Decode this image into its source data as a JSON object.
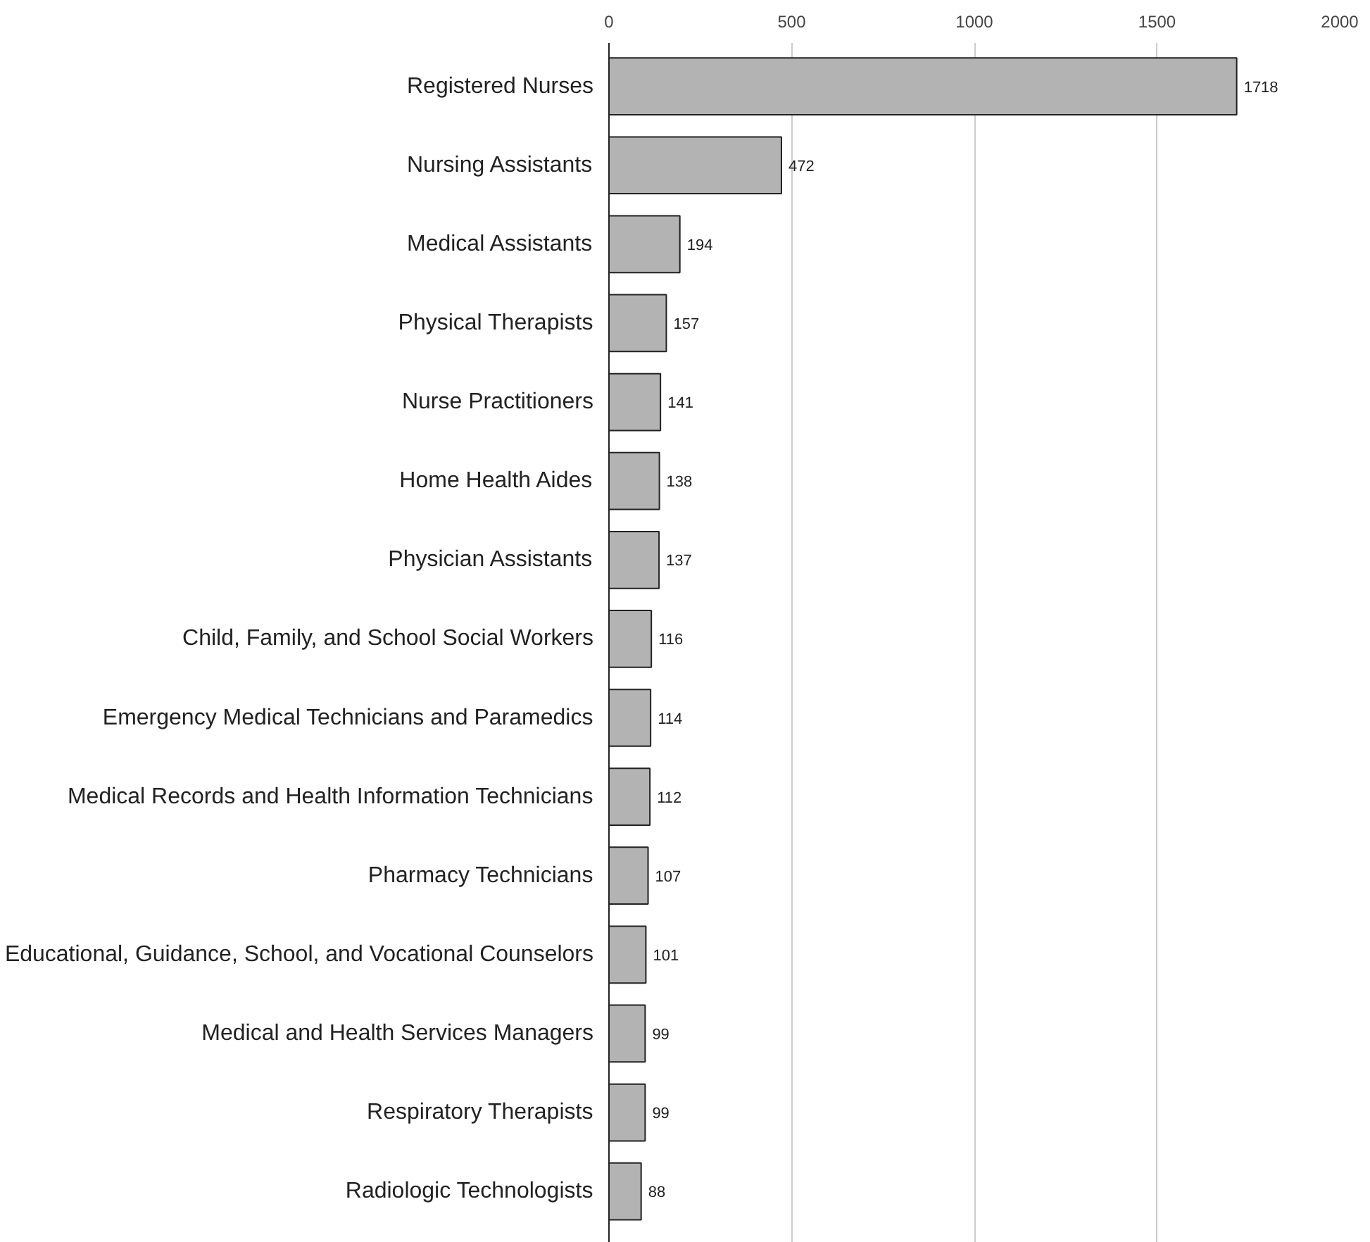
{
  "chart_data": {
    "type": "bar",
    "orientation": "horizontal",
    "categories": [
      "Registered Nurses",
      "Nursing Assistants",
      "Medical Assistants",
      "Physical Therapists",
      "Nurse Practitioners",
      "Home Health Aides",
      "Physician Assistants",
      "Child, Family, and School Social Workers",
      "Emergency Medical Technicians and Paramedics",
      "Medical Records and Health Information Technicians",
      "Pharmacy Technicians",
      "Educational, Guidance, School, and Vocational Counselors",
      "Medical and Health Services Managers",
      "Respiratory Therapists",
      "Radiologic Technologists"
    ],
    "values": [
      1718,
      472,
      194,
      157,
      141,
      138,
      137,
      116,
      114,
      112,
      107,
      101,
      99,
      99,
      88
    ],
    "color": "#b3b3b3",
    "xlim": [
      0,
      2000
    ],
    "xticks": [
      0,
      500,
      1000,
      1500,
      2000
    ],
    "grid": "x",
    "data_labels": true
  }
}
